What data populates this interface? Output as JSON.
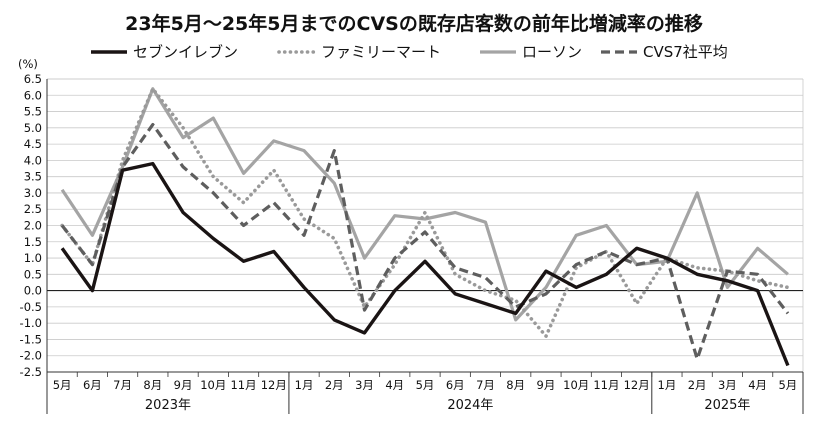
{
  "chart_data": {
    "type": "line",
    "title": "23年5月～25年5月までのCVSの既存店客数の前年比増減率の推移",
    "unit_label": "(%)",
    "ylim": [
      -2.5,
      6.5
    ],
    "yticks": [
      "6.5",
      "6.0",
      "5.5",
      "5.0",
      "4.5",
      "4.0",
      "3.5",
      "3.0",
      "2.5",
      "2.0",
      "1.5",
      "1.0",
      "0.5",
      "0.0",
      "-0.5",
      "-1.0",
      "-1.5",
      "-2.0",
      "-2.5"
    ],
    "categories": [
      "5月",
      "6月",
      "7月",
      "8月",
      "9月",
      "10月",
      "11月",
      "12月",
      "1月",
      "2月",
      "3月",
      "4月",
      "5月",
      "6月",
      "7月",
      "8月",
      "9月",
      "10月",
      "11月",
      "12月",
      "1月",
      "2月",
      "3月",
      "4月",
      "5月"
    ],
    "years": [
      {
        "label": "2023年",
        "start": 0,
        "end": 7
      },
      {
        "label": "2024年",
        "start": 8,
        "end": 19
      },
      {
        "label": "2025年",
        "start": 20,
        "end": 24
      }
    ],
    "grid": true,
    "legend_position": "top",
    "series": [
      {
        "name": "セブンイレブン",
        "color": "#1a1414",
        "style": "solid-thick",
        "values": [
          1.3,
          0.0,
          3.7,
          3.9,
          2.4,
          1.6,
          0.9,
          1.2,
          0.1,
          -0.9,
          -1.3,
          0.0,
          0.9,
          -0.1,
          -0.4,
          -0.7,
          0.6,
          0.1,
          0.5,
          1.3,
          1.0,
          0.5,
          0.3,
          0.0,
          -2.3
        ]
      },
      {
        "name": "ファミリーマート",
        "color": "#9a9a9a",
        "style": "dotted",
        "values": [
          2.0,
          0.8,
          4.0,
          6.2,
          5.0,
          3.5,
          2.7,
          3.7,
          2.2,
          1.6,
          -0.5,
          0.8,
          2.4,
          0.5,
          0.0,
          -0.3,
          -1.4,
          0.7,
          1.2,
          -0.4,
          1.0,
          0.7,
          0.6,
          0.3,
          0.1
        ]
      },
      {
        "name": "ローソン",
        "color": "#a4a4a4",
        "style": "solid",
        "values": [
          3.1,
          1.7,
          3.8,
          6.2,
          4.7,
          5.3,
          3.6,
          4.6,
          4.3,
          3.3,
          1.0,
          2.3,
          2.2,
          2.4,
          2.1,
          -0.9,
          0.1,
          1.7,
          2.0,
          0.8,
          0.9,
          3.0,
          0.1,
          1.3,
          0.5
        ]
      },
      {
        "name": "CVS7社平均",
        "color": "#5e5e5e",
        "style": "dashed",
        "values": [
          2.0,
          0.8,
          3.8,
          5.1,
          3.8,
          3.0,
          2.0,
          2.7,
          1.7,
          4.3,
          -0.6,
          1.0,
          1.8,
          0.7,
          0.4,
          -0.5,
          -0.1,
          0.8,
          1.2,
          0.8,
          1.0,
          -2.1,
          0.6,
          0.5,
          -0.7
        ]
      }
    ]
  }
}
